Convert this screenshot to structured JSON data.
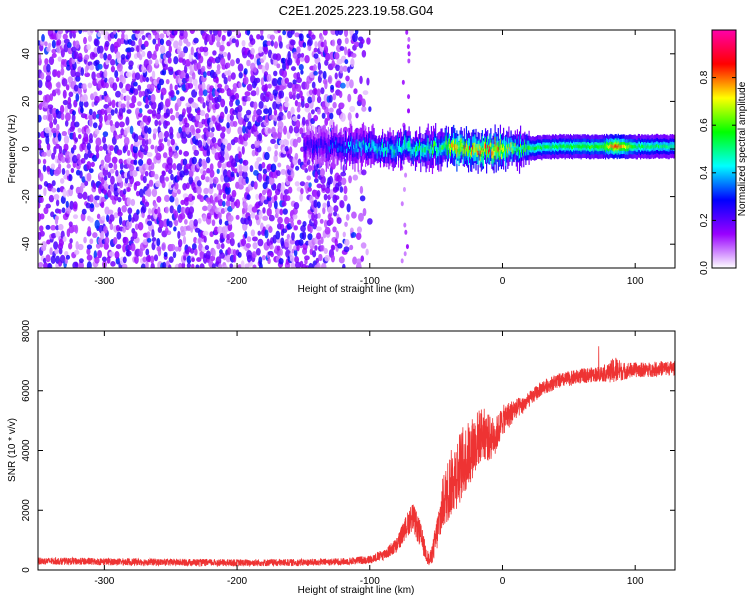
{
  "figure": {
    "title": "C2E1.2025.223.19.58.G04"
  },
  "chart_data": [
    {
      "type": "heatmap",
      "xlabel": "Height of straight line (km)",
      "ylabel": "Frequency (Hz)",
      "xlim": [
        -350,
        130
      ],
      "ylim": [
        -50,
        50
      ],
      "xticks": [
        -300,
        -200,
        -100,
        0,
        100
      ],
      "yticks": [
        -40,
        -20,
        0,
        20,
        40
      ],
      "grid": false,
      "colorbar": {
        "label": "Normalized spectral amplitude",
        "range": [
          0,
          1
        ],
        "ticks": [
          0.0,
          0.2,
          0.4,
          0.6,
          0.8
        ],
        "tick_labels": [
          "0.0",
          "0.2",
          "0.4",
          "0.6",
          "0.8"
        ],
        "colormap": [
          "#ffffff",
          "#9900ff",
          "#0000ff",
          "#00ffff",
          "#00ff00",
          "#ffff00",
          "#ff0000",
          "#ff00aa"
        ]
      },
      "noise_region": {
        "x": [
          -350,
          -100
        ],
        "typical_amplitude": [
          0.0,
          0.35
        ]
      },
      "signal_band": [
        {
          "x": -150,
          "center_hz": 1,
          "amplitude": 0.25
        },
        {
          "x": -130,
          "center_hz": 1,
          "amplitude": 0.3
        },
        {
          "x": -110,
          "center_hz": 1,
          "amplitude": 0.4
        },
        {
          "x": -90,
          "center_hz": 0,
          "amplitude": 0.45
        },
        {
          "x": -75,
          "center_hz": 1,
          "amplitude": 0.5
        },
        {
          "x": -60,
          "center_hz": 0,
          "amplitude": 0.5
        },
        {
          "x": -45,
          "center_hz": 1,
          "amplitude": 0.55
        },
        {
          "x": -35,
          "center_hz": 0,
          "amplitude": 0.8
        },
        {
          "x": -20,
          "center_hz": 0,
          "amplitude": 0.75
        },
        {
          "x": -5,
          "center_hz": 0,
          "amplitude": 0.8
        },
        {
          "x": 10,
          "center_hz": 0,
          "amplitude": 0.55
        },
        {
          "x": 40,
          "center_hz": 1,
          "amplitude": 0.55
        },
        {
          "x": 75,
          "center_hz": 1,
          "amplitude": 0.6
        },
        {
          "x": 85,
          "center_hz": 1,
          "amplitude": 0.85
        },
        {
          "x": 100,
          "center_hz": 1,
          "amplitude": 0.55
        },
        {
          "x": 130,
          "center_hz": 1,
          "amplitude": 0.5
        }
      ]
    },
    {
      "type": "line",
      "xlabel": "Height of straight line (km)",
      "ylabel": "SNR (10 * v/v)",
      "xlim": [
        -350,
        130
      ],
      "ylim": [
        0,
        8000
      ],
      "xticks": [
        -300,
        -200,
        -100,
        0,
        100
      ],
      "yticks": [
        0,
        2000,
        4000,
        6000,
        8000
      ],
      "grid": false,
      "color": "#ee3333",
      "x": [
        -350,
        -300,
        -250,
        -200,
        -150,
        -120,
        -100,
        -90,
        -80,
        -72,
        -68,
        -62,
        -58,
        -55,
        -52,
        -48,
        -45,
        -40,
        -35,
        -30,
        -25,
        -20,
        -15,
        -10,
        -5,
        0,
        5,
        10,
        15,
        20,
        25,
        30,
        35,
        40,
        50,
        60,
        70,
        80,
        85,
        90,
        100,
        110,
        120,
        130
      ],
      "y": [
        300,
        280,
        260,
        240,
        250,
        280,
        350,
        500,
        800,
        1500,
        1800,
        1200,
        600,
        300,
        700,
        1500,
        2200,
        2800,
        3200,
        3600,
        3900,
        4300,
        4600,
        4400,
        4500,
        5000,
        5200,
        5400,
        5500,
        5700,
        5900,
        6100,
        6200,
        6300,
        6400,
        6500,
        6550,
        6600,
        6700,
        6650,
        6700,
        6700,
        6750,
        6750
      ],
      "noise_amplitude": [
        120,
        120,
        120,
        120,
        120,
        120,
        140,
        180,
        260,
        400,
        500,
        450,
        300,
        200,
        400,
        700,
        900,
        1100,
        1200,
        1200,
        1100,
        1000,
        900,
        800,
        600,
        500,
        450,
        350,
        300,
        250,
        250,
        250,
        250,
        250,
        250,
        250,
        250,
        300,
        500,
        300,
        250,
        250,
        250,
        250
      ]
    }
  ]
}
